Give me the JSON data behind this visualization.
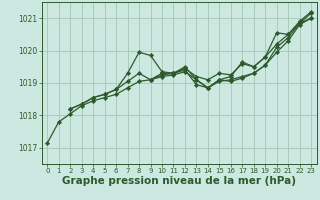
{
  "background_color": "#cce8e0",
  "grid_color": "#aaccbb",
  "line_color": "#2d5a2d",
  "marker_color": "#2d5a2d",
  "xlabel": "Graphe pression niveau de la mer (hPa)",
  "xlabel_fontsize": 7.5,
  "ylim": [
    1016.5,
    1021.5
  ],
  "xlim": [
    -0.5,
    23.5
  ],
  "yticks": [
    1017,
    1018,
    1019,
    1020,
    1021
  ],
  "xticks": [
    0,
    1,
    2,
    3,
    4,
    5,
    6,
    7,
    8,
    9,
    10,
    11,
    12,
    13,
    14,
    15,
    16,
    17,
    18,
    19,
    20,
    21,
    22,
    23
  ],
  "series": [
    {
      "x": [
        0,
        1,
        2,
        3,
        4,
        5,
        6,
        7,
        8,
        9,
        10,
        11,
        12,
        13,
        14,
        15,
        16,
        17,
        18,
        19,
        20,
        21,
        22,
        23
      ],
      "y": [
        1017.15,
        1017.8,
        1018.05,
        1018.3,
        1018.45,
        1018.55,
        1018.65,
        1018.85,
        1019.05,
        1019.1,
        1019.2,
        1019.25,
        1019.35,
        1019.1,
        1018.85,
        1019.05,
        1019.1,
        1019.2,
        1019.3,
        1019.55,
        1020.1,
        1020.4,
        1020.85,
        1021.15
      ]
    },
    {
      "x": [
        2,
        3,
        4,
        5,
        6,
        7,
        8,
        9,
        10,
        11,
        12,
        13,
        14,
        15,
        16,
        17,
        18,
        19,
        20,
        21,
        22,
        23
      ],
      "y": [
        1018.2,
        1018.35,
        1018.55,
        1018.65,
        1018.8,
        1019.3,
        1019.95,
        1019.85,
        1019.35,
        1019.3,
        1019.45,
        1019.2,
        1019.1,
        1019.3,
        1019.25,
        1019.6,
        1019.5,
        1019.8,
        1020.2,
        1020.5,
        1020.85,
        1021.0
      ]
    },
    {
      "x": [
        2,
        3,
        4,
        5,
        6,
        7,
        8,
        9,
        10,
        11,
        12,
        13,
        14,
        15,
        16,
        17,
        18,
        19,
        20,
        21,
        22,
        23
      ],
      "y": [
        1018.2,
        1018.35,
        1018.55,
        1018.65,
        1018.8,
        1019.05,
        1019.3,
        1019.1,
        1019.25,
        1019.3,
        1019.5,
        1019.1,
        1018.85,
        1019.1,
        1019.05,
        1019.15,
        1019.3,
        1019.55,
        1019.95,
        1020.3,
        1020.8,
        1021.0
      ]
    },
    {
      "x": [
        9,
        10,
        11,
        12,
        13,
        14,
        15,
        16,
        17,
        18,
        19,
        20,
        21,
        22,
        23
      ],
      "y": [
        1019.1,
        1019.3,
        1019.3,
        1019.4,
        1018.95,
        1018.85,
        1019.1,
        1019.2,
        1019.65,
        1019.5,
        1019.8,
        1020.55,
        1020.5,
        1020.9,
        1021.2
      ]
    }
  ]
}
